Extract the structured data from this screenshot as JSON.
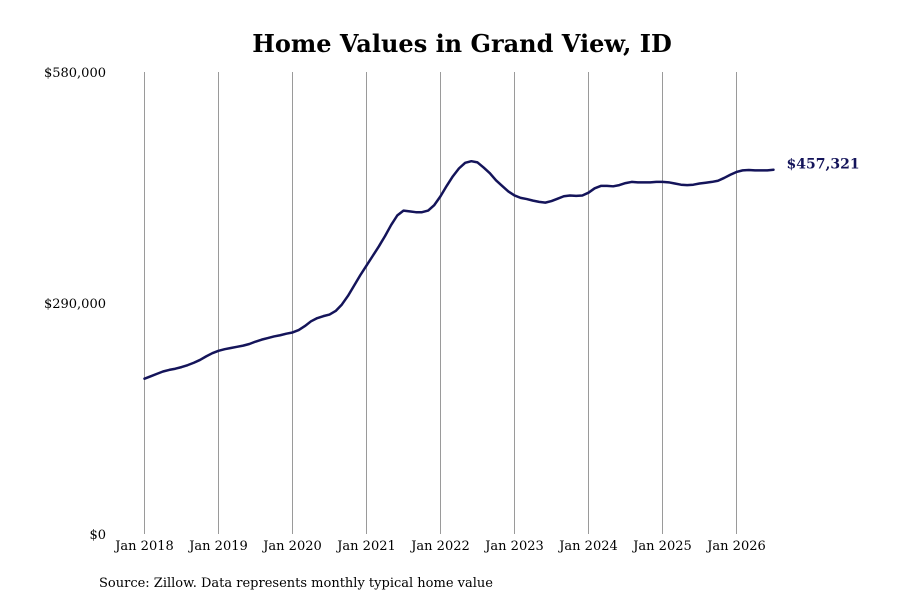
{
  "chart_data": {
    "type": "line",
    "title": "Home Values in Grand View, ID",
    "source": "Source: Zillow. Data represents monthly typical home value",
    "y_ticks": [
      "$580,000",
      "$290,000",
      "$0"
    ],
    "ylim": [
      0,
      580000
    ],
    "x_ticks": [
      "Jan 2018",
      "Jan 2019",
      "Jan 2020",
      "Jan 2021",
      "Jan 2022",
      "Jan 2023",
      "Jan 2024",
      "Jan 2025",
      "Jan 2026"
    ],
    "xlim": [
      "2018-01",
      "2026-07"
    ],
    "grid": {
      "vertical": true,
      "horizontal": false
    },
    "line_color": "#14145a",
    "end_label": "$457,321",
    "series": [
      {
        "points": [
          [
            "2018-01",
            195000
          ],
          [
            "2018-02",
            198000
          ],
          [
            "2018-03",
            201000
          ],
          [
            "2018-04",
            204000
          ],
          [
            "2018-05",
            206000
          ],
          [
            "2018-06",
            207500
          ],
          [
            "2018-07",
            209500
          ],
          [
            "2018-08",
            212000
          ],
          [
            "2018-09",
            215000
          ],
          [
            "2018-10",
            218500
          ],
          [
            "2018-11",
            223000
          ],
          [
            "2018-12",
            227000
          ],
          [
            "2019-01",
            230000
          ],
          [
            "2019-02",
            232000
          ],
          [
            "2019-03",
            233500
          ],
          [
            "2019-04",
            235000
          ],
          [
            "2019-05",
            236500
          ],
          [
            "2019-06",
            238500
          ],
          [
            "2019-07",
            241500
          ],
          [
            "2019-08",
            244000
          ],
          [
            "2019-09",
            246000
          ],
          [
            "2019-10",
            248000
          ],
          [
            "2019-11",
            249500
          ],
          [
            "2019-12",
            251500
          ],
          [
            "2020-01",
            253000
          ],
          [
            "2020-02",
            256000
          ],
          [
            "2020-03",
            261000
          ],
          [
            "2020-04",
            267000
          ],
          [
            "2020-05",
            271000
          ],
          [
            "2020-06",
            273500
          ],
          [
            "2020-07",
            275500
          ],
          [
            "2020-08",
            280000
          ],
          [
            "2020-09",
            288000
          ],
          [
            "2020-10",
            299000
          ],
          [
            "2020-11",
            312000
          ],
          [
            "2020-12",
            325000
          ],
          [
            "2021-01",
            337000
          ],
          [
            "2021-02",
            349000
          ],
          [
            "2021-03",
            361000
          ],
          [
            "2021-04",
            374000
          ],
          [
            "2021-05",
            388000
          ],
          [
            "2021-06",
            400000
          ],
          [
            "2021-07",
            406000
          ],
          [
            "2021-08",
            405000
          ],
          [
            "2021-09",
            404000
          ],
          [
            "2021-10",
            404000
          ],
          [
            "2021-11",
            406000
          ],
          [
            "2021-12",
            413000
          ],
          [
            "2022-01",
            424000
          ],
          [
            "2022-02",
            437000
          ],
          [
            "2022-03",
            449000
          ],
          [
            "2022-04",
            459000
          ],
          [
            "2022-05",
            466000
          ],
          [
            "2022-06",
            468000
          ],
          [
            "2022-07",
            466500
          ],
          [
            "2022-08",
            460000
          ],
          [
            "2022-09",
            453000
          ],
          [
            "2022-10",
            444000
          ],
          [
            "2022-11",
            437000
          ],
          [
            "2022-12",
            430000
          ],
          [
            "2023-01",
            425000
          ],
          [
            "2023-02",
            422000
          ],
          [
            "2023-03",
            420500
          ],
          [
            "2023-04",
            418500
          ],
          [
            "2023-05",
            417000
          ],
          [
            "2023-06",
            416000
          ],
          [
            "2023-07",
            418000
          ],
          [
            "2023-08",
            421000
          ],
          [
            "2023-09",
            424000
          ],
          [
            "2023-10",
            425000
          ],
          [
            "2023-11",
            424500
          ],
          [
            "2023-12",
            425000
          ],
          [
            "2024-01",
            428500
          ],
          [
            "2024-02",
            434000
          ],
          [
            "2024-03",
            437000
          ],
          [
            "2024-04",
            437000
          ],
          [
            "2024-05",
            436500
          ],
          [
            "2024-06",
            438000
          ],
          [
            "2024-07",
            440500
          ],
          [
            "2024-08",
            442000
          ],
          [
            "2024-09",
            441500
          ],
          [
            "2024-10",
            441500
          ],
          [
            "2024-11",
            441500
          ],
          [
            "2024-12",
            442000
          ],
          [
            "2025-01",
            442000
          ],
          [
            "2025-02",
            441500
          ],
          [
            "2025-03",
            440000
          ],
          [
            "2025-04",
            438500
          ],
          [
            "2025-05",
            438000
          ],
          [
            "2025-06",
            438500
          ],
          [
            "2025-07",
            440000
          ],
          [
            "2025-08",
            441000
          ],
          [
            "2025-09",
            442000
          ],
          [
            "2025-10",
            443500
          ],
          [
            "2025-11",
            447000
          ],
          [
            "2025-12",
            451000
          ],
          [
            "2026-01",
            454500
          ],
          [
            "2026-02",
            456500
          ],
          [
            "2026-03",
            457000
          ],
          [
            "2026-04",
            456500
          ],
          [
            "2026-05",
            456500
          ],
          [
            "2026-06",
            456500
          ],
          [
            "2026-07",
            457321
          ]
        ]
      }
    ]
  }
}
